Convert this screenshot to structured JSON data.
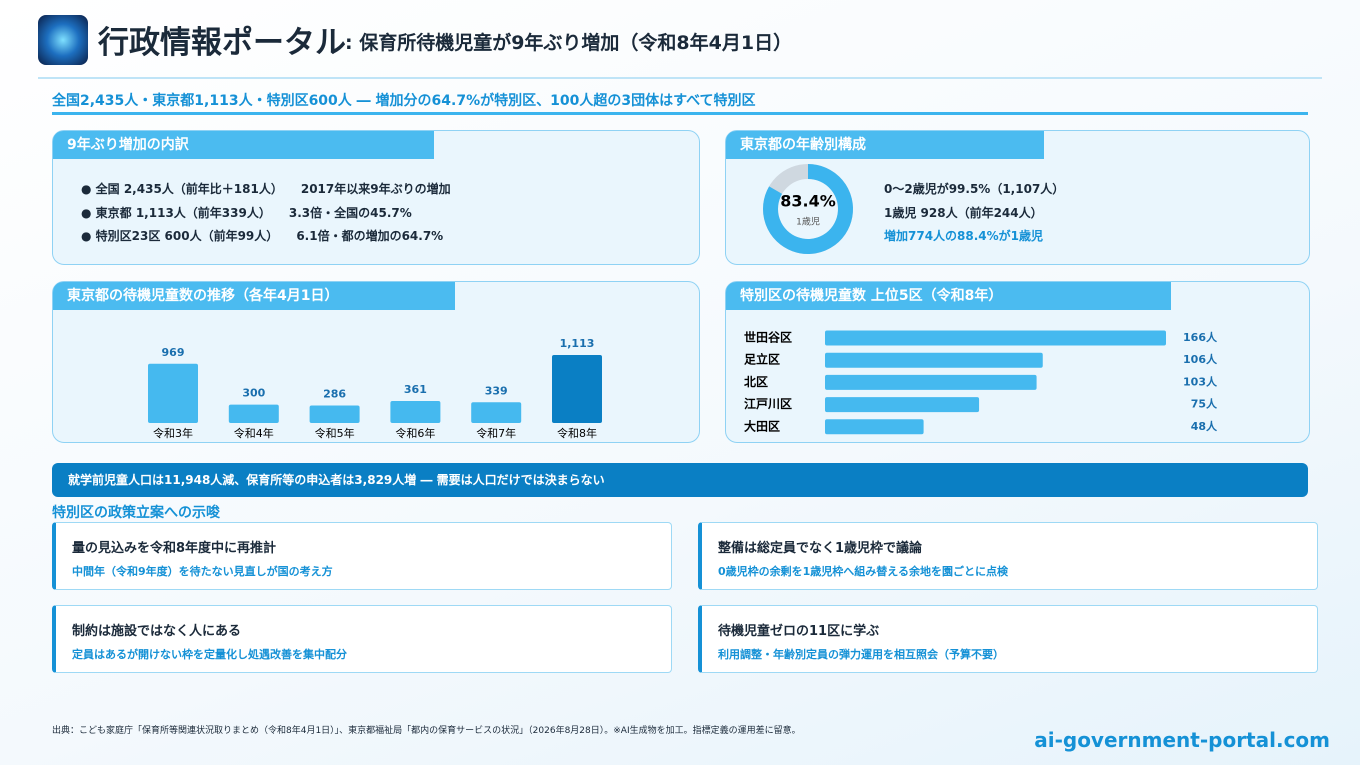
{
  "header": {
    "title": "行政情報ポータル",
    "subtitle": ": 保育所待機児童が9年ぶり増加（令和8年4月1日）"
  },
  "headline": "全国2,435人・東京都1,113人・特別区600人 ― 増加分の64.7%が特別区、100人超の3団体はすべて特別区",
  "breakdown": {
    "title": "9年ぶり増加の内訳",
    "items": [
      [
        "全国 2,435人（前年比＋181人）",
        "2017年以来9年ぶりの増加"
      ],
      [
        "東京都 1,113人（前年339人）",
        "3.3倍・全国の45.7%"
      ],
      [
        "特別区23区 600人（前年99人）",
        "6.1倍・都の増加の64.7%"
      ]
    ]
  },
  "age": {
    "title": "東京都の年齢別構成",
    "chart": {
      "type": "donut",
      "value": 83.4,
      "value_label": "83.4%",
      "center_label": "1歳児",
      "color": "#3bb4ee",
      "rest_color": "#cfd8e0"
    },
    "lines": [
      "0〜2歳児が99.5%（1,107人）",
      "1歳児 928人（前年244人）",
      "増加774人の88.4%が1歳児"
    ]
  },
  "trend": {
    "title": "東京都の待機児童数の推移（各年4月1日）",
    "chart": {
      "type": "bar",
      "categories": [
        "令和3年",
        "令和4年",
        "令和5年",
        "令和6年",
        "令和7年",
        "令和8年"
      ],
      "values": [
        969,
        300,
        286,
        361,
        339,
        1113
      ],
      "value_labels": [
        "969",
        "300",
        "286",
        "361",
        "339",
        "1,113"
      ],
      "colors": [
        "#45b9ef",
        "#45b9ef",
        "#45b9ef",
        "#45b9ef",
        "#45b9ef",
        "#0a7fc4"
      ]
    }
  },
  "ranking": {
    "title": "特別区の待機児童数 上位5区（令和8年）",
    "chart": {
      "type": "hbar",
      "categories": [
        "世田谷区",
        "足立区",
        "北区",
        "江戸川区",
        "大田区"
      ],
      "values": [
        166,
        106,
        103,
        75,
        48
      ],
      "value_labels": [
        "166人",
        "106人",
        "103人",
        "75人",
        "48人"
      ],
      "color": "#45b9ef"
    }
  },
  "banner": "就学前児童人口は11,948人減、保育所等の申込者は3,829人増 ― 需要は人口だけでは決まらない",
  "section_title": "特別区の政策立案への示唆",
  "cards": [
    {
      "title": "量の見込みを令和8年度中に再推計",
      "note": "中間年（令和9年度）を待たない見直しが国の考え方"
    },
    {
      "title": "整備は総定員でなく1歳児枠で議論",
      "note": "0歳児枠の余剰を1歳児枠へ組み替える余地を園ごとに点検"
    },
    {
      "title": "制約は施設ではなく人にある",
      "note": "定員はあるが開けない枠を定量化し処遇改善を集中配分"
    },
    {
      "title": "待機児童ゼロの11区に学ぶ",
      "note": "利用調整・年齢別定員の弾力運用を相互照会（予算不要）"
    }
  ],
  "footer": {
    "source": "出典：こども家庭庁「保育所等関連状況取りまとめ（令和8年4月1日）」、東京都福祉局「都内の保育サービスの状況」（2026年8月28日）。※AI生成物を加工。指標定義の運用差に留意。",
    "url": "ai-government-portal.com"
  }
}
